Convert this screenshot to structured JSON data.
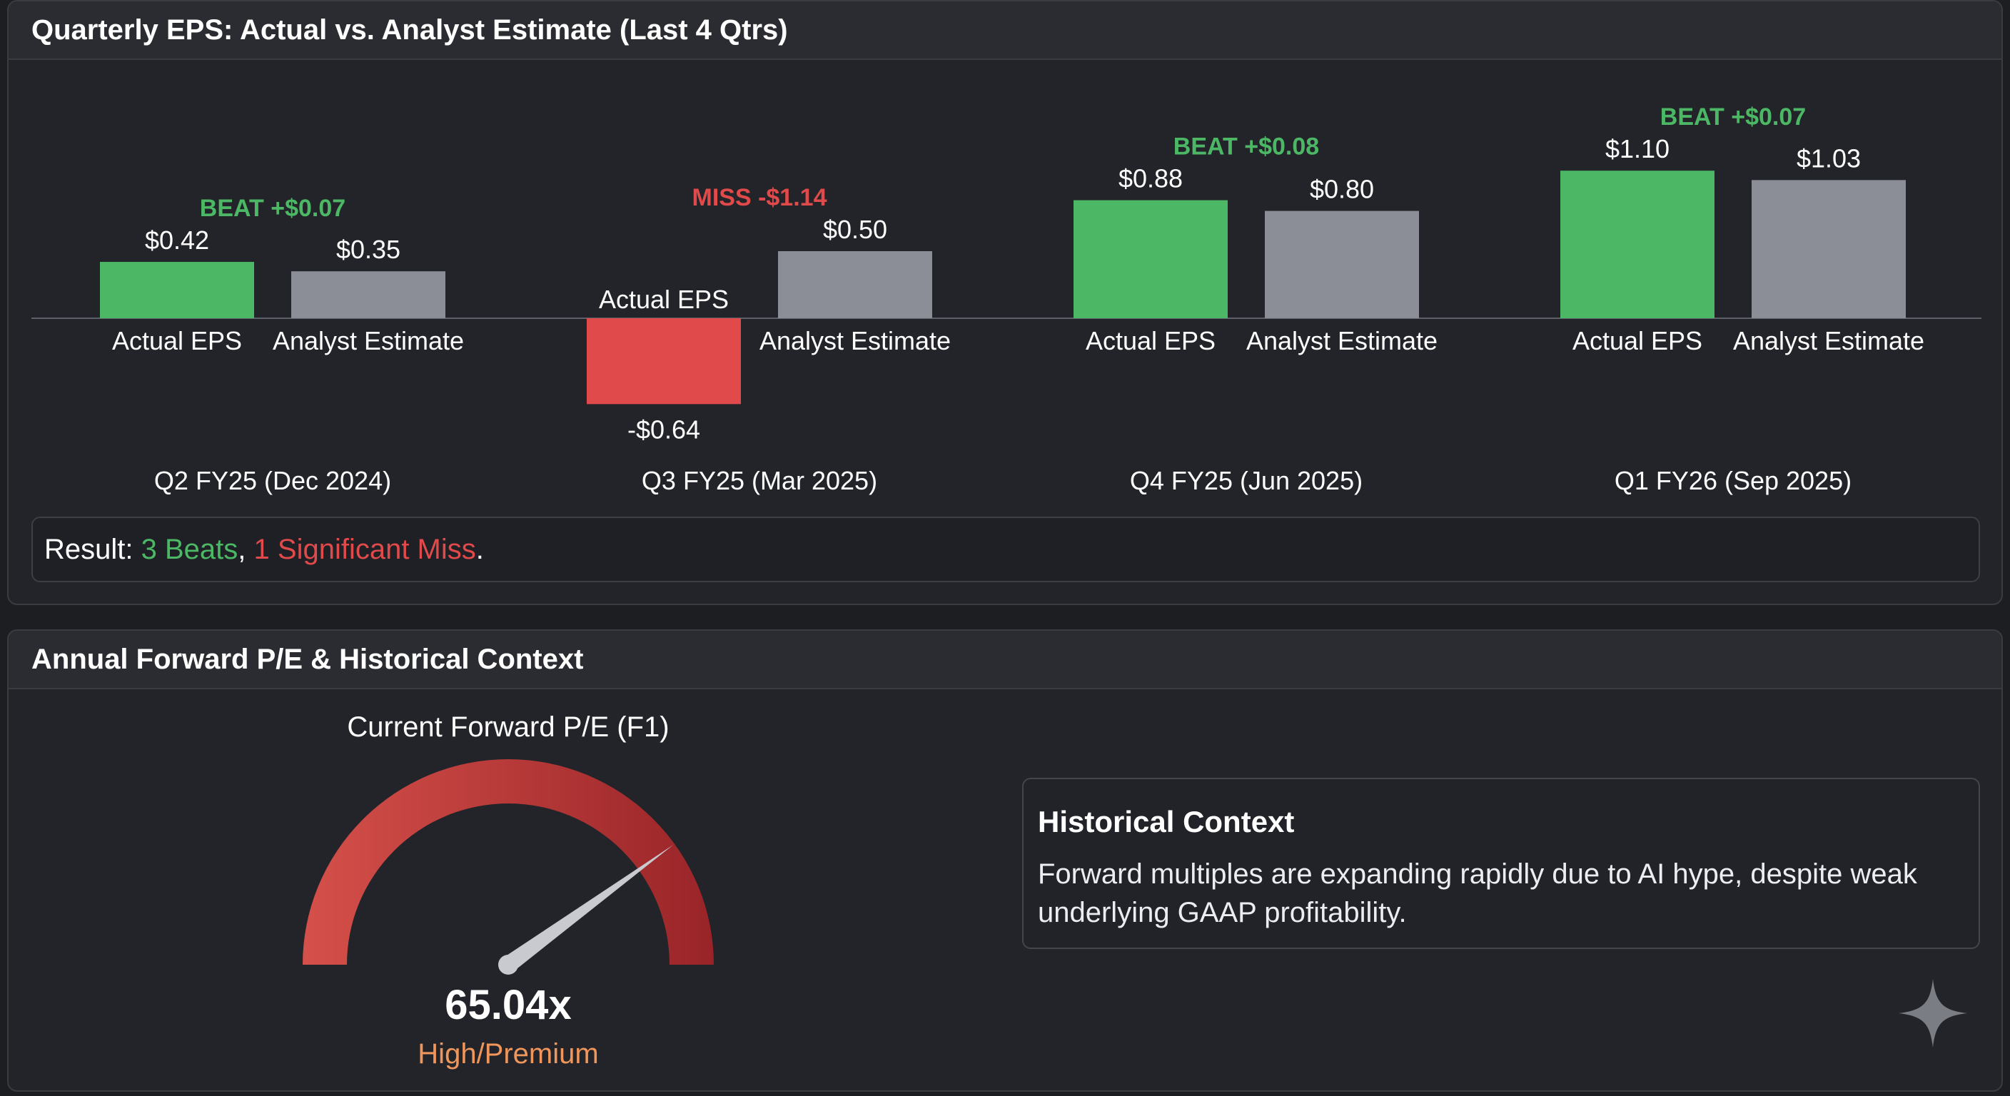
{
  "eps_panel": {
    "title": "Quarterly EPS: Actual vs. Analyst Estimate (Last 4 Qtrs)",
    "result": {
      "prefix": "Result: ",
      "beats": "3 Beats",
      "separator": ", ",
      "miss": "1 Significant Miss",
      "suffix": "."
    }
  },
  "chart_data": {
    "type": "bar",
    "title": "Quarterly EPS: Actual vs. Analyst Estimate (Last 4 Qtrs)",
    "categories": [
      "Q2 FY25 (Dec 2024)",
      "Q3 FY25 (Mar 2025)",
      "Q4 FY25 (Jun 2025)",
      "Q1 FY26 (Sep 2025)"
    ],
    "series": [
      {
        "name": "Actual EPS",
        "values": [
          0.42,
          -0.64,
          0.88,
          1.1
        ],
        "labels": [
          "$0.42",
          "-$0.64",
          "$0.88",
          "$1.10"
        ]
      },
      {
        "name": "Analyst Estimate",
        "values": [
          0.35,
          0.5,
          0.8,
          1.03
        ],
        "labels": [
          "$0.35",
          "$0.50",
          "$0.80",
          "$1.03"
        ]
      }
    ],
    "annotations": [
      {
        "text": "BEAT +$0.07",
        "status": "beat"
      },
      {
        "text": "MISS -$1.14",
        "status": "miss"
      },
      {
        "text": "BEAT +$0.08",
        "status": "beat"
      },
      {
        "text": "BEAT +$0.07",
        "status": "beat"
      }
    ],
    "ylim": [
      -0.8,
      1.2
    ],
    "grid": false,
    "colors": {
      "beat": "#4cb865",
      "miss": "#e04a4a",
      "estimate": "#8b8e97",
      "axis": "#5d6068"
    }
  },
  "pe_panel": {
    "title": "Annual Forward P/E & Historical Context",
    "gauge": {
      "label": "Current Forward P/E (F1)",
      "value": 65.04,
      "value_text": "65.04x",
      "status": "High/Premium",
      "fill_fraction": 0.78,
      "needle_fraction": 0.8,
      "colors": {
        "light": "#d5504a",
        "dark": "#992428",
        "needle": "#c8cad0",
        "status": "#f0965a"
      }
    },
    "context": {
      "title": "Historical Context",
      "text": "Forward multiples are expanding rapidly due to AI hype, despite weak underlying GAAP profitability."
    }
  }
}
